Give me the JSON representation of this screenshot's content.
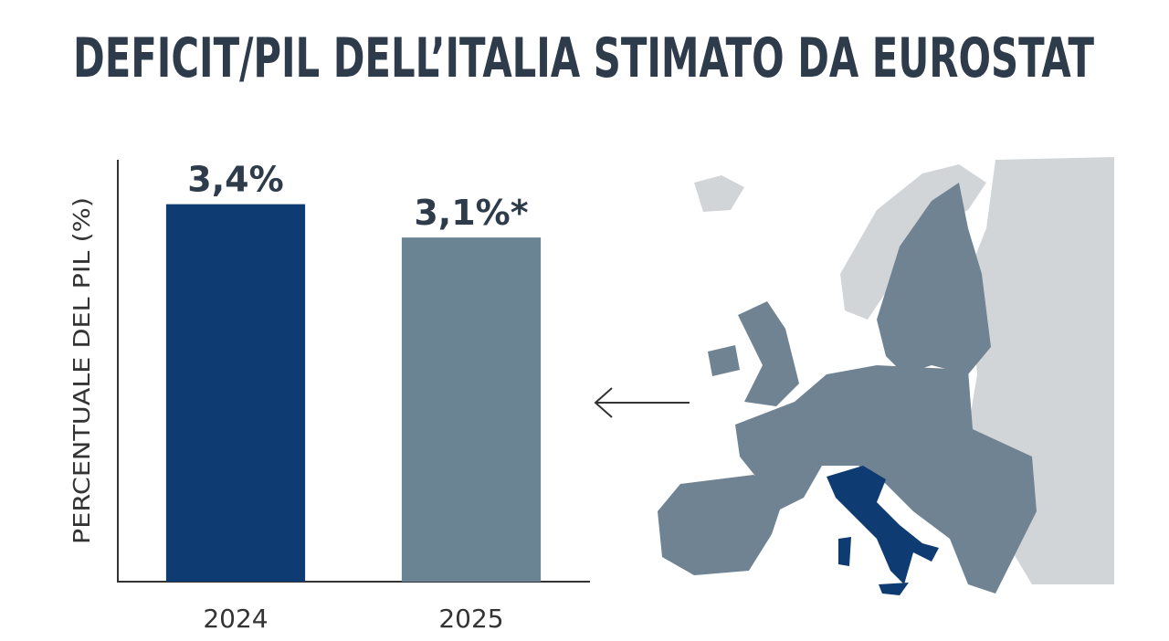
{
  "chart_data": {
    "type": "bar",
    "title": "DEFICIT/PIL DELL’ITALIA STIMATO DA EUROSTAT",
    "y_label": "PERCENTUALE DEL PIL (%)",
    "categories": [
      "2024",
      "2025"
    ],
    "values": [
      3.4,
      3.1
    ],
    "value_labels": [
      "3,4%",
      "3,1%*"
    ],
    "colors": [
      "#0d3b72",
      "#6b8494"
    ],
    "ylim": [
      0,
      3.8
    ]
  }
}
